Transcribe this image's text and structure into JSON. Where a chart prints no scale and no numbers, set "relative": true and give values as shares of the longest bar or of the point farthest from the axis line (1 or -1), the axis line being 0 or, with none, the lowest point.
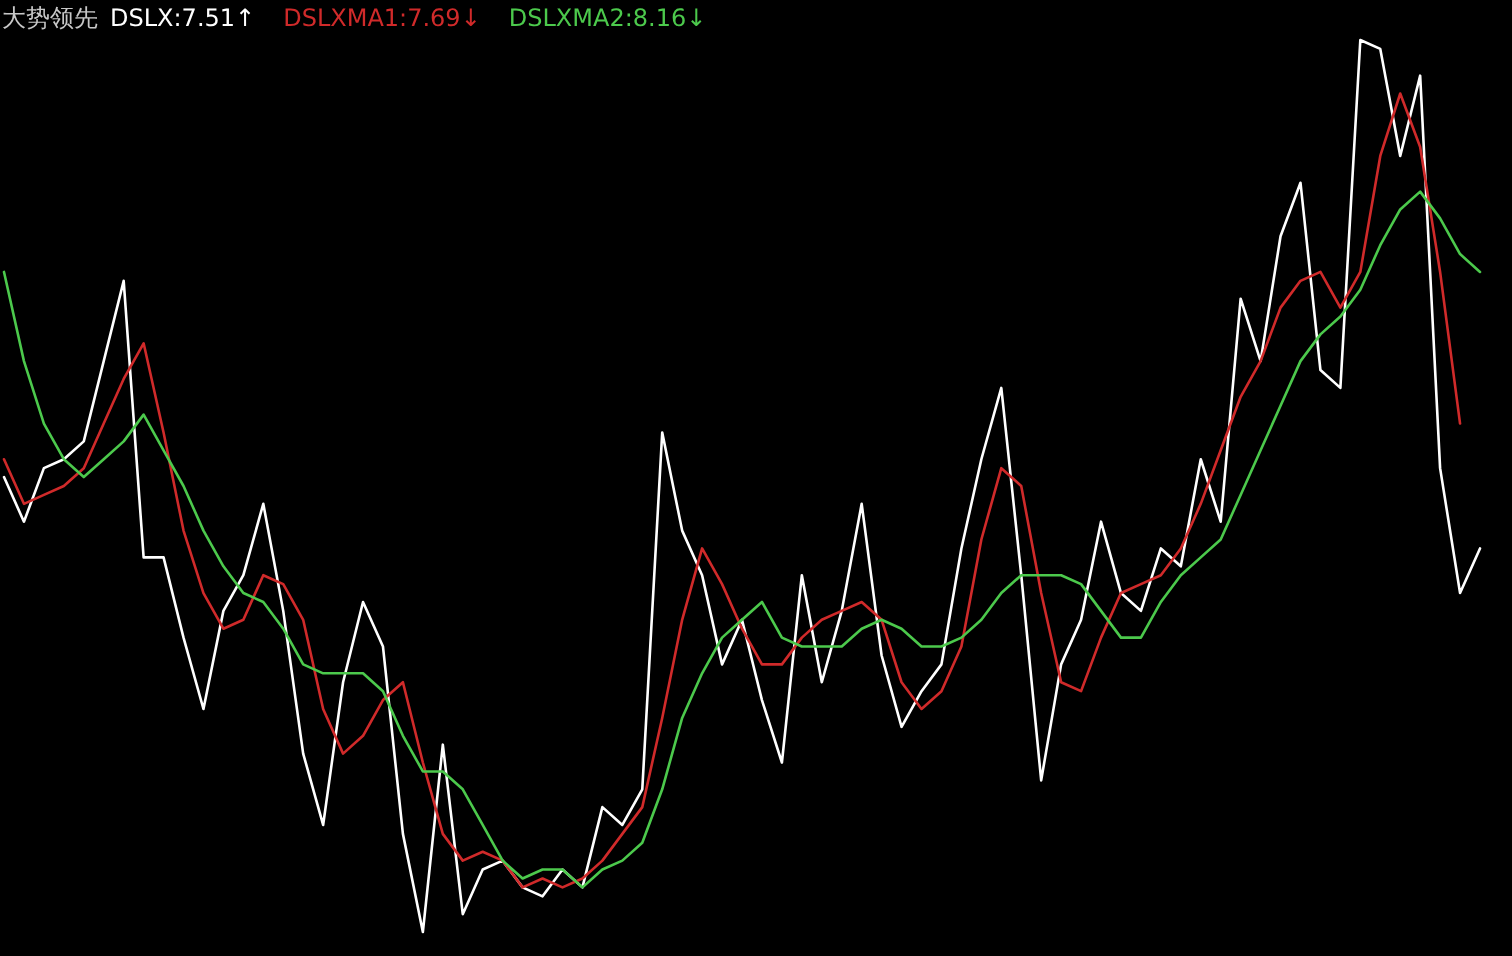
{
  "chart_data": {
    "type": "line",
    "title": "大势领先",
    "relative": true,
    "categories": [
      null,
      null,
      null,
      null,
      null,
      null,
      null,
      null,
      null,
      null,
      null,
      null,
      null,
      null,
      null,
      null,
      null,
      null,
      null,
      null,
      null,
      null,
      null,
      null,
      null,
      null,
      null,
      null,
      null,
      null,
      null,
      null,
      null,
      null,
      null,
      null,
      null,
      null,
      null,
      null,
      null,
      null,
      null,
      null,
      null,
      null,
      null,
      null,
      null,
      null,
      null,
      null,
      null,
      null,
      null,
      null,
      null,
      null,
      null,
      null,
      null,
      null,
      null,
      null,
      null,
      null,
      null,
      null,
      null,
      null,
      null,
      null,
      null,
      null,
      null
    ],
    "series": [
      {
        "name": "DSLX:7.51↑",
        "color": "#ffffff",
        "values": [
          0.51,
          0.46,
          0.52,
          0.53,
          0.55,
          0.64,
          0.73,
          0.42,
          0.42,
          0.33,
          0.25,
          0.36,
          0.4,
          0.48,
          0.36,
          0.2,
          0.12,
          0.28,
          0.37,
          0.32,
          0.11,
          0.0,
          0.21,
          0.02,
          0.07,
          0.08,
          0.05,
          0.04,
          0.07,
          0.05,
          0.14,
          0.12,
          0.16,
          0.56,
          0.45,
          0.4,
          0.3,
          0.35,
          0.26,
          0.19,
          0.4,
          0.28,
          0.36,
          0.48,
          0.31,
          0.23,
          0.27,
          0.3,
          0.43,
          0.53,
          0.61,
          0.4,
          0.17,
          0.3,
          0.35,
          0.46,
          0.38,
          0.36,
          0.43,
          0.41,
          0.53,
          0.46,
          0.71,
          0.64,
          0.78,
          0.84,
          0.63,
          0.61,
          1.0,
          0.99,
          0.87,
          0.96,
          0.52,
          0.38,
          0.43
        ]
      },
      {
        "name": "DSLXMA1:7.69↓",
        "color": "#d02a2a",
        "values": [
          0.53,
          0.48,
          0.49,
          0.5,
          0.52,
          0.57,
          0.62,
          0.66,
          0.56,
          0.45,
          0.38,
          0.34,
          0.35,
          0.4,
          0.39,
          0.35,
          0.25,
          0.2,
          0.22,
          0.26,
          0.28,
          0.19,
          0.11,
          0.08,
          0.09,
          0.08,
          0.05,
          0.06,
          0.05,
          0.06,
          0.08,
          0.11,
          0.14,
          0.24,
          0.35,
          0.43,
          0.39,
          0.34,
          0.3,
          0.3,
          0.33,
          0.35,
          0.36,
          0.37,
          0.35,
          0.28,
          0.25,
          0.27,
          0.32,
          0.44,
          0.52,
          0.5,
          0.38,
          0.28,
          0.27,
          0.33,
          0.38,
          0.39,
          0.4,
          0.43,
          0.48,
          0.54,
          0.6,
          0.64,
          0.7,
          0.73,
          0.74,
          0.7,
          0.74,
          0.87,
          0.94,
          0.88,
          0.74,
          0.57,
          null
        ]
      },
      {
        "name": "DSLXMA2:8.16↓",
        "color": "#4cc94c",
        "values": [
          0.74,
          0.64,
          0.57,
          0.53,
          0.51,
          0.53,
          0.55,
          0.58,
          0.54,
          0.5,
          0.45,
          0.41,
          0.38,
          0.37,
          0.34,
          0.3,
          0.29,
          0.29,
          0.29,
          0.27,
          0.22,
          0.18,
          0.18,
          0.16,
          0.12,
          0.08,
          0.06,
          0.07,
          0.07,
          0.05,
          0.07,
          0.08,
          0.1,
          0.16,
          0.24,
          0.29,
          0.33,
          0.35,
          0.37,
          0.33,
          0.32,
          0.32,
          0.32,
          0.34,
          0.35,
          0.34,
          0.32,
          0.32,
          0.33,
          0.35,
          0.38,
          0.4,
          0.4,
          0.4,
          0.39,
          0.36,
          0.33,
          0.33,
          0.37,
          0.4,
          0.42,
          0.44,
          0.49,
          0.54,
          0.59,
          0.64,
          0.67,
          0.69,
          0.72,
          0.77,
          0.81,
          0.83,
          0.8,
          0.76,
          0.74
        ]
      }
    ]
  }
}
